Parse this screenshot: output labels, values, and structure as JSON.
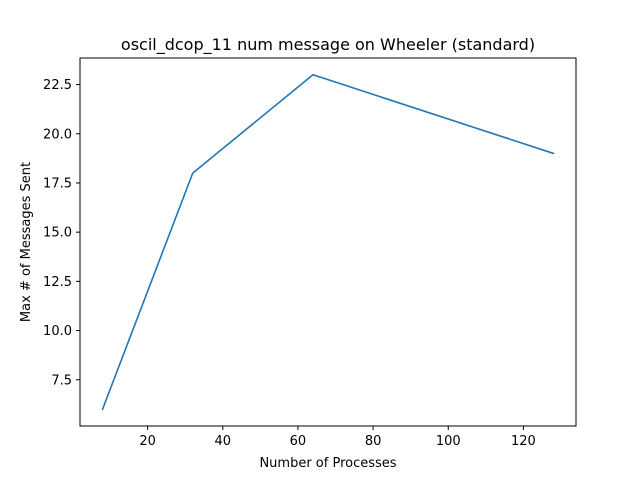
{
  "chart_data": {
    "type": "line",
    "title": "oscil_dcop_11 num message on Wheeler (standard)",
    "xlabel": "Number of Processes",
    "ylabel": "Max # of Messages Sent",
    "xlim": [
      2,
      134
    ],
    "ylim": [
      5.15,
      23.85
    ],
    "xticks": [
      20,
      40,
      60,
      80,
      100,
      120
    ],
    "xtick_labels": [
      "20",
      "40",
      "60",
      "80",
      "100",
      "120"
    ],
    "yticks": [
      7.5,
      10.0,
      12.5,
      15.0,
      17.5,
      20.0,
      22.5
    ],
    "ytick_labels": [
      "7.5",
      "10.0",
      "12.5",
      "15.0",
      "17.5",
      "20.0",
      "22.5"
    ],
    "grid": false,
    "series": [
      {
        "color": "#1f77b4",
        "x": [
          8,
          32,
          64,
          128
        ],
        "y": [
          6,
          18,
          23,
          19
        ]
      }
    ]
  }
}
